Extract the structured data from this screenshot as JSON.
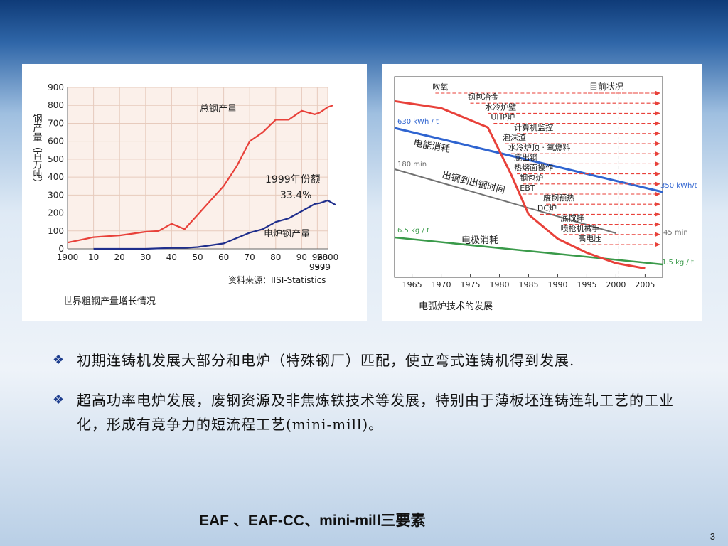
{
  "chart_data": [
    {
      "type": "line",
      "ylabel": "钢产量（百万吨）",
      "yticks": [
        0,
        100,
        200,
        300,
        400,
        500,
        600,
        700,
        800,
        900
      ],
      "ylim": [
        0,
        900
      ],
      "xlim": [
        1900,
        2000
      ],
      "xticks": [
        {
          "v": 1900,
          "label": "1900"
        },
        {
          "v": 1910,
          "label": "10"
        },
        {
          "v": 1920,
          "label": "20"
        },
        {
          "v": 1930,
          "label": "30"
        },
        {
          "v": 1940,
          "label": "40"
        },
        {
          "v": 1950,
          "label": "50"
        },
        {
          "v": 1960,
          "label": "60"
        },
        {
          "v": 1970,
          "label": "70"
        },
        {
          "v": 1980,
          "label": "80"
        },
        {
          "v": 1990,
          "label": "90"
        },
        {
          "v": 1996,
          "label": "96"
        },
        {
          "v": 2000,
          "label": "2000"
        }
      ],
      "xticks_second_row": [
        {
          "v": 1995,
          "label": "95"
        },
        {
          "v": 1997,
          "label": "97"
        },
        {
          "v": 1999,
          "label": "99"
        }
      ],
      "xtick_extra_top": {
        "v": 1998,
        "label": "98"
      },
      "series": [
        {
          "name": "总钢产量",
          "color": "#e8413a",
          "x": [
            1900,
            1905,
            1910,
            1915,
            1920,
            1925,
            1930,
            1935,
            1940,
            1945,
            1950,
            1955,
            1960,
            1965,
            1970,
            1975,
            1980,
            1985,
            1990,
            1995,
            1997,
            2000,
            2002
          ],
          "y": [
            35,
            50,
            65,
            70,
            75,
            85,
            95,
            100,
            140,
            110,
            190,
            270,
            350,
            460,
            600,
            650,
            720,
            720,
            770,
            750,
            760,
            790,
            800
          ]
        },
        {
          "name": "电炉钢产量",
          "color": "#1f2e8c",
          "x": [
            1910,
            1920,
            1930,
            1940,
            1945,
            1950,
            1955,
            1960,
            1965,
            1970,
            1975,
            1980,
            1985,
            1990,
            1995,
            1997,
            2000,
            2003
          ],
          "y": [
            0,
            0,
            0,
            5,
            5,
            10,
            20,
            30,
            60,
            90,
            110,
            150,
            170,
            210,
            250,
            255,
            270,
            245
          ]
        }
      ],
      "annotations": [
        {
          "text": "1999年份额"
        },
        {
          "text": "33.4%"
        }
      ],
      "source": "资料来源：IISI-Statistics",
      "caption": "世界粗钢产量增长情况"
    },
    {
      "type": "line",
      "xticks": [
        1965,
        1970,
        1975,
        1980,
        1985,
        1990,
        1995,
        2000,
        2005
      ],
      "xlim": [
        1962,
        2008
      ],
      "current_status_label": "目前状况",
      "curve": {
        "color": "#e8413a",
        "x": [
          1962,
          1970,
          1978,
          1982,
          1985,
          1990,
          1995,
          2000,
          2005
        ],
        "y": [
          0.97,
          0.93,
          0.82,
          0.55,
          0.32,
          0.18,
          0.1,
          0.04,
          0.01
        ]
      },
      "series": [
        {
          "name": "电能消耗",
          "color": "#2f64d0",
          "start_label": "630 kWh / t",
          "end_label": "350 kWh/t",
          "x": [
            1962,
            2008
          ],
          "y": [
            630,
            350
          ]
        },
        {
          "name": "出钢到出钢时间",
          "color": "#6e6e6e",
          "start_label": "180 min",
          "end_label": "45 min",
          "x": [
            1962,
            2000
          ],
          "y": [
            180,
            45
          ]
        },
        {
          "name": "电极消耗",
          "color": "#3a9a4a",
          "start_label": "6.5 kg / t",
          "end_label": "1.5 kg / t",
          "x": [
            1962,
            2008
          ],
          "y": [
            6.5,
            1.5
          ]
        }
      ],
      "milestones": [
        {
          "label": "吹氧",
          "year": 1969
        },
        {
          "label": "钢包冶金",
          "year": 1975
        },
        {
          "label": "水冷炉壁",
          "year": 1978
        },
        {
          "label": "UHP炉",
          "year": 1979
        },
        {
          "label": "计算机监控",
          "year": 1983
        },
        {
          "label": "泡沫渣",
          "year": 1981
        },
        {
          "label": "水冷炉顶 · 氧燃料",
          "year": 1982
        },
        {
          "label": "底出钢",
          "year": 1983
        },
        {
          "label": "热熔面操作",
          "year": 1983
        },
        {
          "label": "钢包炉",
          "year": 1984
        },
        {
          "label": "EBT",
          "year": 1984
        },
        {
          "label": "废钢预热",
          "year": 1988
        },
        {
          "label": "DC炉",
          "year": 1987
        },
        {
          "label": "底搅拌",
          "year": 1991
        },
        {
          "label": "喷枪机械手",
          "year": 1991
        },
        {
          "label": "高电压",
          "year": 1994
        }
      ],
      "caption": "电弧炉技术的发展"
    }
  ],
  "bullets": [
    {
      "icon": "diamond-bullet-icon",
      "text": "初期连铸机发展大部分和电炉（特殊钢厂）匹配，使立弯式连铸机得到发展."
    },
    {
      "icon": "diamond-bullet-icon",
      "text": "超高功率电炉发展，废钢资源及非焦炼铁技术等发展，特别由于薄板坯连铸连轧工艺的工业化，形成有竞争力的短流程工艺(mini-mill)。"
    }
  ],
  "footer_line": "EAF 、EAF-CC、mini-mill三要素",
  "page_number": "3"
}
